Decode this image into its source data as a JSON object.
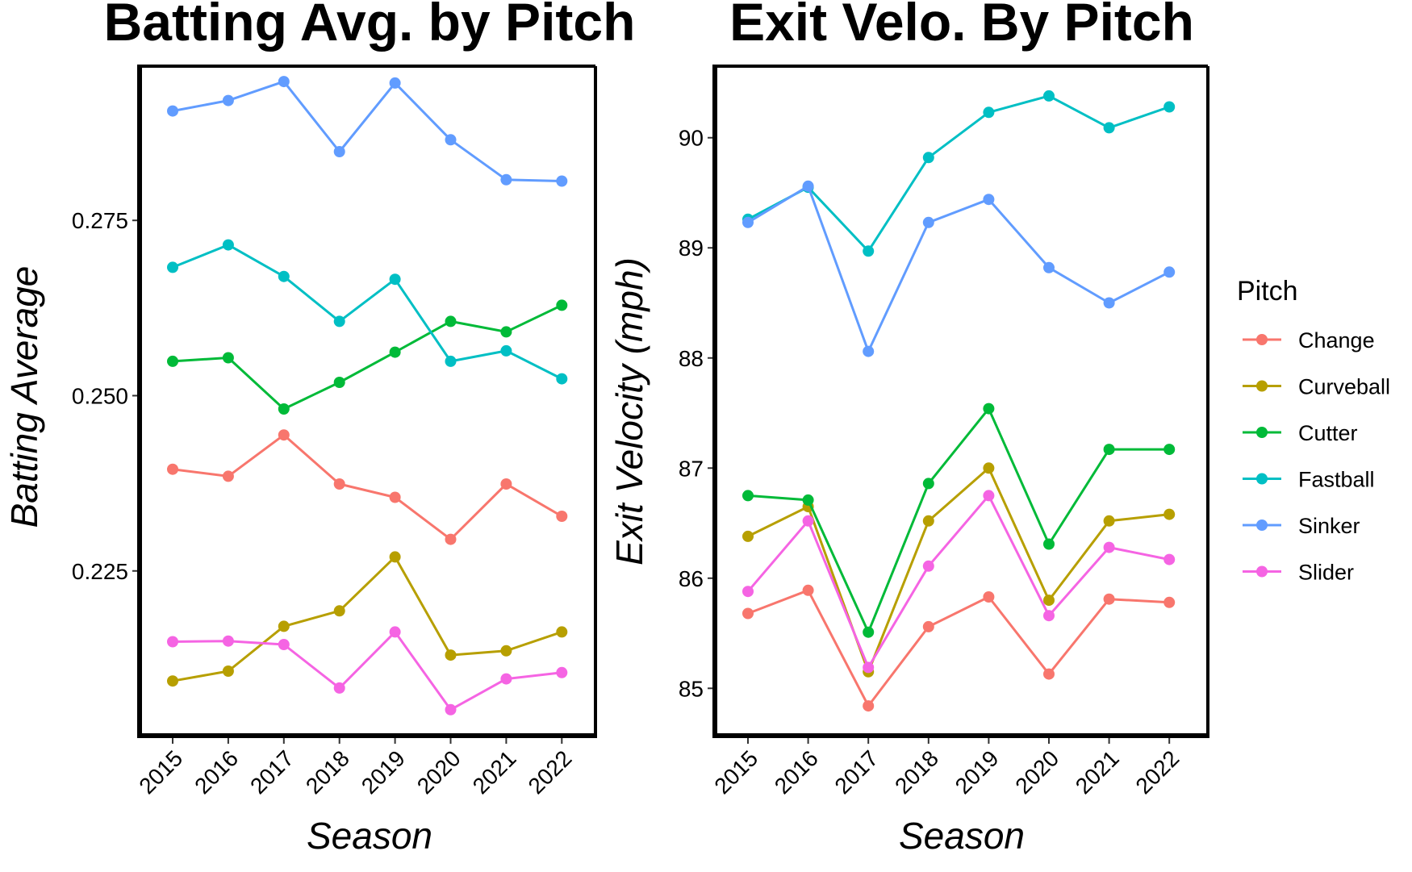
{
  "chart_data": [
    {
      "type": "line",
      "title": "Batting Avg. by Pitch",
      "xlabel": "Season",
      "ylabel": "Batting Average",
      "x": [
        "2015",
        "2016",
        "2017",
        "2018",
        "2019",
        "2020",
        "2021",
        "2022"
      ],
      "yticks": [
        0.225,
        0.25,
        0.275
      ],
      "ytick_labels": [
        "0.225",
        "0.250",
        "0.275"
      ],
      "ylim": [
        0.2015,
        0.297
      ],
      "grid": false,
      "series": [
        {
          "name": "Change",
          "color": "#F8766D",
          "values": [
            0.2395,
            0.2385,
            0.2444,
            0.2374,
            0.2355,
            0.2295,
            0.2374,
            0.2328
          ]
        },
        {
          "name": "Curveball",
          "color": "#B79F00",
          "values": [
            0.2093,
            0.2107,
            0.2171,
            0.2193,
            0.227,
            0.213,
            0.2136,
            0.2163
          ]
        },
        {
          "name": "Cutter",
          "color": "#00BA38",
          "values": [
            0.2549,
            0.2554,
            0.2481,
            0.2519,
            0.2562,
            0.2606,
            0.2591,
            0.2629
          ]
        },
        {
          "name": "Fastball",
          "color": "#00BFC4",
          "values": [
            0.2683,
            0.2715,
            0.267,
            0.2606,
            0.2666,
            0.2549,
            0.2564,
            0.2524
          ]
        },
        {
          "name": "Sinker",
          "color": "#619CFF",
          "values": [
            0.2906,
            0.2921,
            0.2948,
            0.2848,
            0.2946,
            0.2865,
            0.2808,
            0.2806
          ]
        },
        {
          "name": "Slider",
          "color": "#F564E3",
          "values": [
            0.2149,
            0.215,
            0.2145,
            0.2083,
            0.2163,
            0.2052,
            0.2096,
            0.2105
          ]
        }
      ]
    },
    {
      "type": "line",
      "title": "Exit Velo. By Pitch",
      "xlabel": "Season",
      "ylabel": "Exit Velocity (mph)",
      "x": [
        "2015",
        "2016",
        "2017",
        "2018",
        "2019",
        "2020",
        "2021",
        "2022"
      ],
      "yticks": [
        85,
        86,
        87,
        88,
        89,
        90
      ],
      "ytick_labels": [
        "85",
        "86",
        "87",
        "88",
        "89",
        "90"
      ],
      "ylim": [
        84.57,
        90.65
      ],
      "grid": false,
      "series": [
        {
          "name": "Change",
          "color": "#F8766D",
          "values": [
            85.68,
            85.89,
            84.84,
            85.56,
            85.83,
            85.13,
            85.81,
            85.78
          ]
        },
        {
          "name": "Curveball",
          "color": "#B79F00",
          "values": [
            86.38,
            86.65,
            85.15,
            86.52,
            87.0,
            85.8,
            86.52,
            86.58
          ]
        },
        {
          "name": "Cutter",
          "color": "#00BA38",
          "values": [
            86.75,
            86.71,
            85.51,
            86.86,
            87.54,
            86.31,
            87.17,
            87.17
          ]
        },
        {
          "name": "Fastball",
          "color": "#00BFC4",
          "values": [
            89.26,
            89.55,
            88.97,
            89.82,
            90.23,
            90.38,
            90.09,
            90.28
          ]
        },
        {
          "name": "Sinker",
          "color": "#619CFF",
          "values": [
            89.23,
            89.56,
            88.06,
            89.23,
            89.44,
            88.82,
            88.5,
            88.78
          ]
        },
        {
          "name": "Slider",
          "color": "#F564E3",
          "values": [
            85.88,
            86.52,
            85.19,
            86.11,
            86.75,
            85.66,
            86.28,
            86.17
          ]
        }
      ]
    }
  ],
  "legend": {
    "title": "Pitch",
    "placement": "right",
    "items": [
      {
        "label": "Change",
        "color": "#F8766D"
      },
      {
        "label": "Curveball",
        "color": "#B79F00"
      },
      {
        "label": "Cutter",
        "color": "#00BA38"
      },
      {
        "label": "Fastball",
        "color": "#00BFC4"
      },
      {
        "label": "Sinker",
        "color": "#619CFF"
      },
      {
        "label": "Slider",
        "color": "#F564E3"
      }
    ]
  }
}
